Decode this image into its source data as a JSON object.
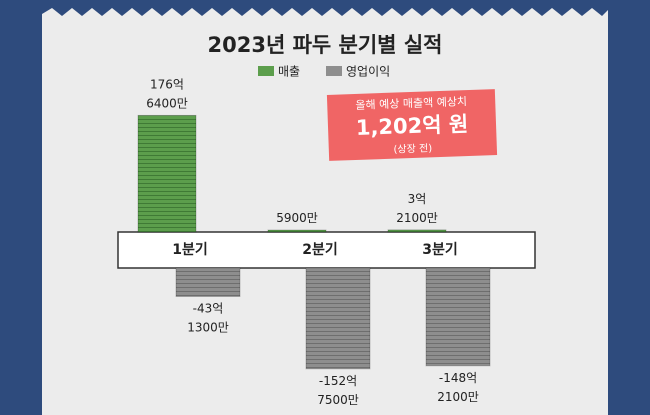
{
  "chart_data": {
    "type": "bar",
    "title": "2023년 파두 분기별 실적",
    "categories": [
      "1분기",
      "2분기",
      "3분기"
    ],
    "series": [
      {
        "name": "매출",
        "color": "#5c9e4c",
        "values": [
          176.64,
          0.59,
          3.21
        ],
        "value_labels": [
          [
            "176억",
            "6400만"
          ],
          [
            "5900만"
          ],
          [
            "3억",
            "2100만"
          ]
        ]
      },
      {
        "name": "영업이익",
        "color": "#8e8e8e",
        "values": [
          -43.13,
          -152.75,
          -148.21
        ],
        "value_labels": [
          [
            "-43억",
            "1300만"
          ],
          [
            "-152억",
            "7500만"
          ],
          [
            "-148억",
            "2100만"
          ]
        ]
      }
    ],
    "annotation": {
      "heading": "올해 예상 매출액 예상치",
      "value": "1,202억 원",
      "note": "(상장 전)"
    }
  }
}
